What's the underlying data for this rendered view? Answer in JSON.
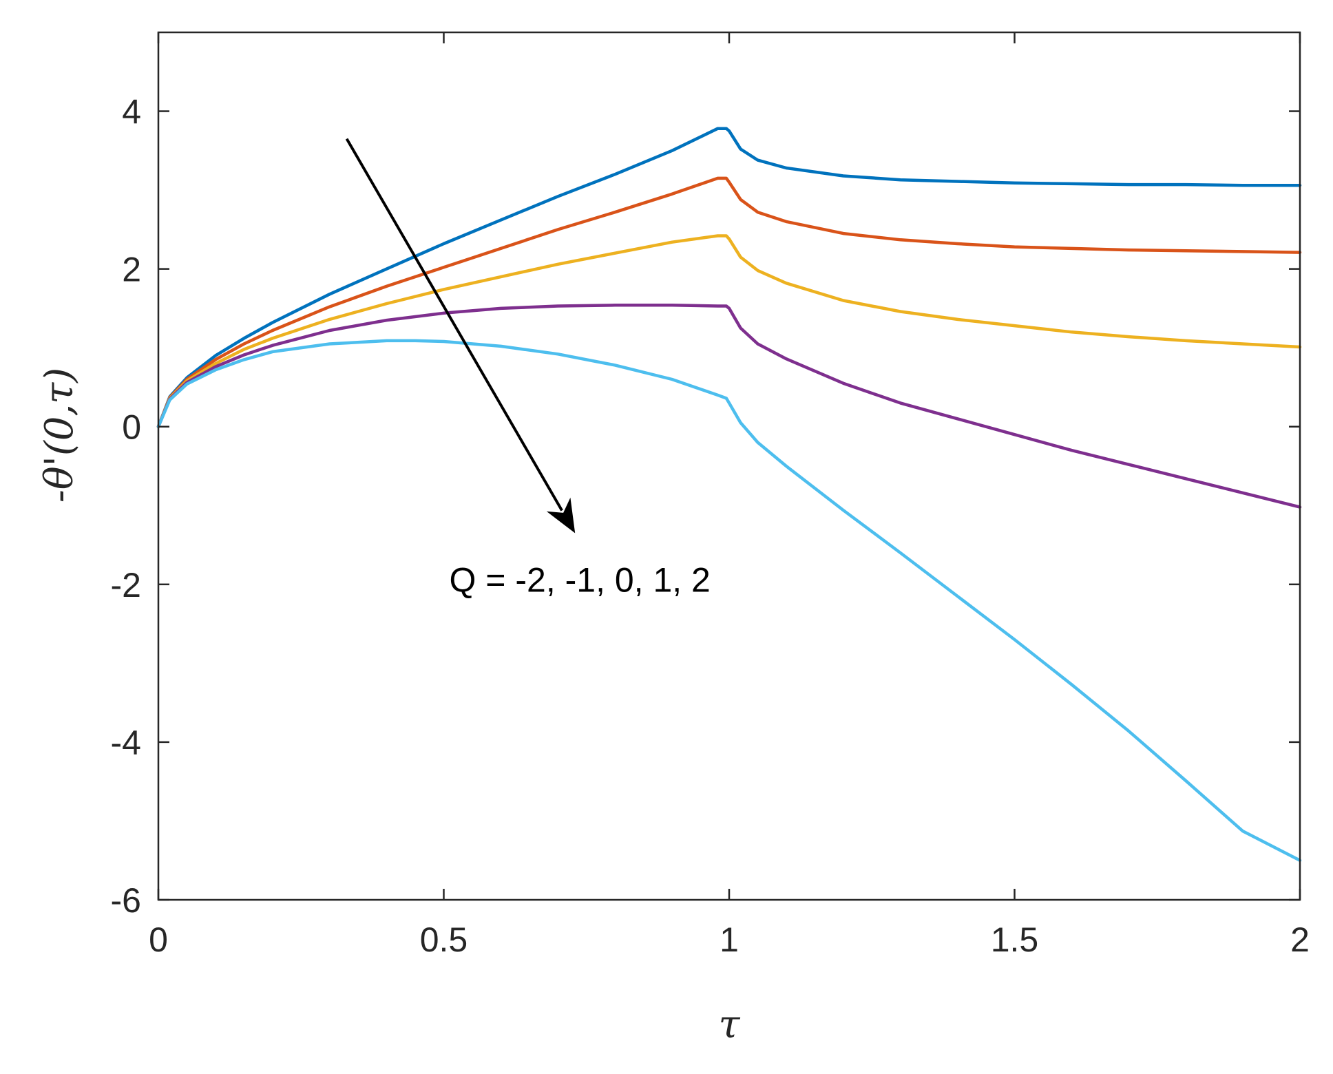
{
  "chart_data": {
    "type": "line",
    "xlabel": "τ",
    "ylabel": "-θ'(0,τ)",
    "xlim": [
      0,
      2
    ],
    "ylim": [
      -6,
      5
    ],
    "xticks": [
      0,
      0.5,
      1,
      1.5,
      2
    ],
    "xtick_labels": [
      "0",
      "0.5",
      "1",
      "1.5",
      "2"
    ],
    "yticks": [
      -6,
      -4,
      -2,
      0,
      2,
      4
    ],
    "ytick_labels": [
      "-6",
      "-4",
      "-2",
      "0",
      "2",
      "4"
    ],
    "grid": false,
    "legend": "none",
    "annotation": {
      "text": "Q = -2, -1, 0, 1, 2",
      "text_at": [
        0.5,
        -2.05
      ],
      "arrow_from": [
        0.33,
        3.65
      ],
      "arrow_to": [
        0.73,
        -1.35
      ]
    },
    "series": [
      {
        "color": "#0072BD",
        "x": [
          0,
          0.02,
          0.05,
          0.1,
          0.15,
          0.2,
          0.3,
          0.4,
          0.5,
          0.6,
          0.7,
          0.8,
          0.9,
          0.98,
          0.995,
          1.0,
          1.02,
          1.05,
          1.1,
          1.2,
          1.3,
          1.4,
          1.5,
          1.6,
          1.7,
          1.8,
          1.9,
          2.0
        ],
        "y": [
          0,
          0.38,
          0.62,
          0.9,
          1.12,
          1.32,
          1.68,
          2.0,
          2.32,
          2.62,
          2.92,
          3.2,
          3.5,
          3.78,
          3.78,
          3.75,
          3.52,
          3.38,
          3.28,
          3.18,
          3.13,
          3.11,
          3.09,
          3.08,
          3.07,
          3.07,
          3.06,
          3.06
        ]
      },
      {
        "color": "#D95319",
        "x": [
          0,
          0.02,
          0.05,
          0.1,
          0.15,
          0.2,
          0.3,
          0.4,
          0.5,
          0.6,
          0.7,
          0.8,
          0.9,
          0.98,
          0.995,
          1.0,
          1.02,
          1.05,
          1.1,
          1.2,
          1.3,
          1.4,
          1.5,
          1.6,
          1.7,
          1.8,
          1.9,
          2.0
        ],
        "y": [
          0,
          0.37,
          0.6,
          0.85,
          1.05,
          1.22,
          1.52,
          1.78,
          2.02,
          2.26,
          2.5,
          2.72,
          2.95,
          3.15,
          3.15,
          3.1,
          2.88,
          2.72,
          2.6,
          2.45,
          2.37,
          2.32,
          2.28,
          2.26,
          2.24,
          2.23,
          2.22,
          2.21
        ]
      },
      {
        "color": "#EDB120",
        "x": [
          0,
          0.02,
          0.05,
          0.1,
          0.15,
          0.2,
          0.3,
          0.4,
          0.5,
          0.6,
          0.7,
          0.8,
          0.9,
          0.98,
          0.995,
          1.0,
          1.02,
          1.05,
          1.1,
          1.2,
          1.3,
          1.4,
          1.5,
          1.6,
          1.7,
          1.8,
          1.9,
          2.0
        ],
        "y": [
          0,
          0.36,
          0.58,
          0.8,
          0.98,
          1.12,
          1.36,
          1.56,
          1.74,
          1.9,
          2.06,
          2.2,
          2.34,
          2.42,
          2.42,
          2.38,
          2.15,
          1.98,
          1.82,
          1.6,
          1.46,
          1.36,
          1.28,
          1.2,
          1.14,
          1.09,
          1.05,
          1.01
        ]
      },
      {
        "color": "#7E2F8E",
        "x": [
          0,
          0.02,
          0.05,
          0.1,
          0.15,
          0.2,
          0.3,
          0.4,
          0.5,
          0.6,
          0.7,
          0.8,
          0.9,
          0.98,
          0.995,
          1.0,
          1.02,
          1.05,
          1.1,
          1.2,
          1.3,
          1.4,
          1.5,
          1.6,
          1.7,
          1.8,
          1.9,
          2.0
        ],
        "y": [
          0,
          0.35,
          0.56,
          0.76,
          0.91,
          1.03,
          1.22,
          1.35,
          1.44,
          1.5,
          1.53,
          1.54,
          1.54,
          1.53,
          1.53,
          1.5,
          1.25,
          1.05,
          0.86,
          0.55,
          0.3,
          0.1,
          -0.1,
          -0.3,
          -0.48,
          -0.66,
          -0.84,
          -1.02
        ]
      },
      {
        "color": "#4DBEEE",
        "x": [
          0,
          0.02,
          0.05,
          0.1,
          0.15,
          0.2,
          0.3,
          0.4,
          0.45,
          0.5,
          0.6,
          0.7,
          0.8,
          0.9,
          0.98,
          0.995,
          1.0,
          1.02,
          1.05,
          1.1,
          1.2,
          1.3,
          1.4,
          1.5,
          1.6,
          1.7,
          1.8,
          1.9,
          2.0
        ],
        "y": [
          0,
          0.34,
          0.54,
          0.72,
          0.85,
          0.95,
          1.05,
          1.09,
          1.09,
          1.08,
          1.02,
          0.92,
          0.78,
          0.6,
          0.4,
          0.36,
          0.3,
          0.05,
          -0.2,
          -0.5,
          -1.06,
          -1.6,
          -2.15,
          -2.7,
          -3.27,
          -3.86,
          -4.49,
          -5.13,
          -5.5
        ]
      }
    ]
  }
}
